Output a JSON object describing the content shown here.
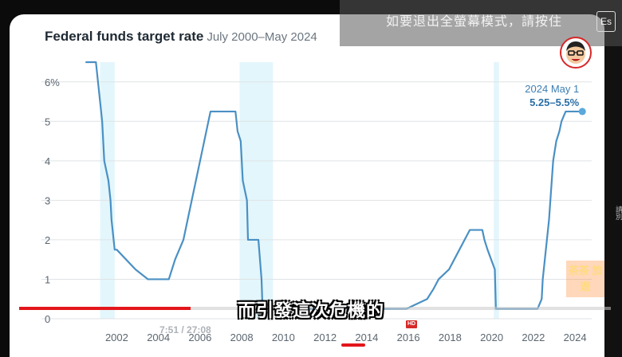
{
  "video": {
    "fullscreen_notice": "如要退出全螢幕模式，請按住",
    "exit_key_label": "Es",
    "caption": "而引發這次危機的",
    "time": "7:51 / 27:08",
    "hd_label": "HD",
    "progress_fraction": 0.29,
    "side_strip_text": "請別",
    "watermark_text": "茶茶 旅遊"
  },
  "chart_data": {
    "type": "line",
    "title": "Federal funds target rate",
    "subtitle": "July 2000–May 2024",
    "xlabel": "",
    "ylabel": "",
    "xlim": [
      2000.3,
      2024.8
    ],
    "ylim": [
      0,
      6.5
    ],
    "y_ticks": [
      0,
      1,
      2,
      3,
      4,
      5,
      6
    ],
    "y_tick_labels": [
      "0",
      "1",
      "2",
      "3",
      "4",
      "5",
      "6%"
    ],
    "x_ticks": [
      2002,
      2004,
      2006,
      2008,
      2010,
      2012,
      2014,
      2016,
      2018,
      2020,
      2022,
      2024
    ],
    "x_tick_labels": [
      "2002",
      "2004",
      "2006",
      "2008",
      "2010",
      "2012",
      "2014",
      "2016",
      "2018",
      "2020",
      "2022",
      "2024"
    ],
    "grid": true,
    "recessions": [
      [
        2001.2,
        2001.9
      ],
      [
        2007.9,
        2009.5
      ],
      [
        2020.1,
        2020.35
      ]
    ],
    "series": [
      {
        "name": "",
        "color": "#4a90c4",
        "x": [
          2000.5,
          2001.0,
          2001.1,
          2001.2,
          2001.3,
          2001.4,
          2001.5,
          2001.6,
          2001.7,
          2001.75,
          2001.85,
          2001.9,
          2002.0,
          2002.9,
          2003.5,
          2004.5,
          2004.65,
          2004.8,
          2005.0,
          2005.2,
          2005.4,
          2005.6,
          2005.8,
          2006.0,
          2006.2,
          2006.4,
          2006.5,
          2007.7,
          2007.8,
          2007.95,
          2008.05,
          2008.25,
          2008.3,
          2008.8,
          2008.95,
          2009.0,
          2015.9,
          2016.9,
          2017.2,
          2017.45,
          2017.95,
          2018.2,
          2018.45,
          2018.7,
          2018.95,
          2019.55,
          2019.65,
          2019.8,
          2020.15,
          2020.2,
          2022.2,
          2022.4,
          2022.45,
          2022.6,
          2022.75,
          2022.85,
          2022.95,
          2023.1,
          2023.25,
          2023.35,
          2023.55,
          2024.35
        ],
        "y": [
          6.5,
          6.5,
          6.0,
          5.5,
          5.0,
          4.0,
          3.75,
          3.5,
          3.0,
          2.5,
          2.0,
          1.75,
          1.75,
          1.25,
          1.0,
          1.0,
          1.25,
          1.5,
          1.75,
          2.0,
          2.5,
          3.0,
          3.5,
          4.0,
          4.5,
          5.0,
          5.25,
          5.25,
          4.75,
          4.5,
          3.5,
          3.0,
          2.0,
          2.0,
          1.0,
          0.25,
          0.25,
          0.5,
          0.75,
          1.0,
          1.25,
          1.5,
          1.75,
          2.0,
          2.25,
          2.25,
          2.0,
          1.75,
          1.25,
          0.25,
          0.25,
          0.5,
          1.0,
          1.75,
          2.5,
          3.25,
          4.0,
          4.5,
          4.75,
          5.0,
          5.25,
          5.25
        ]
      }
    ],
    "annotation": {
      "x": 2024.35,
      "y": 5.25,
      "label": "2024 May 1",
      "value_label": "5.25–5.5%"
    }
  }
}
